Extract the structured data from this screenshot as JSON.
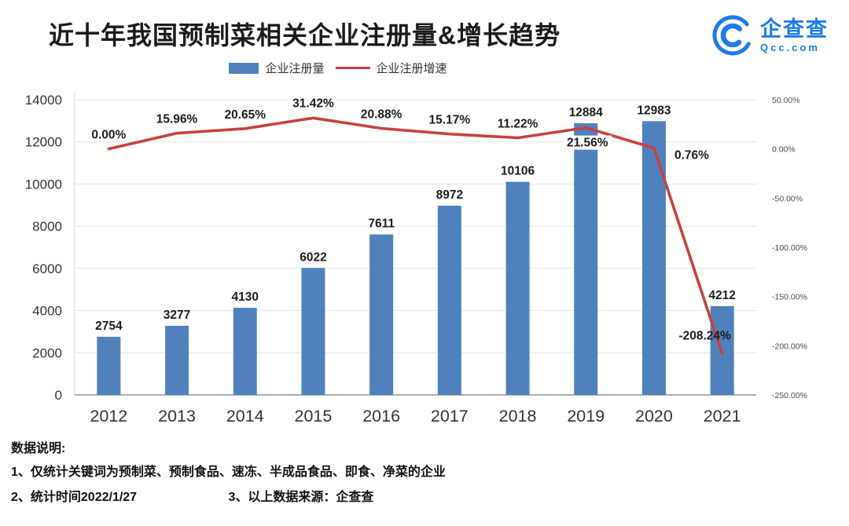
{
  "header": {
    "title": "近十年我国预制菜相关企业注册量&增长趋势",
    "logo": {
      "name": "企查查",
      "domain": "Qcc.com"
    }
  },
  "legend": {
    "bar_label": "企业注册量",
    "line_label": "企业注册增速"
  },
  "chart_data": {
    "type": "bar+line",
    "title": "近十年我国预制菜相关企业注册量&增长趋势",
    "categories": [
      "2012",
      "2013",
      "2014",
      "2015",
      "2016",
      "2017",
      "2018",
      "2019",
      "2020",
      "2021"
    ],
    "series": [
      {
        "name": "企业注册量",
        "type": "bar",
        "axis": "left",
        "color": "#4f81bd",
        "values": [
          2754,
          3277,
          4130,
          6022,
          7611,
          8972,
          10106,
          12884,
          12983,
          4212
        ],
        "value_labels": [
          "2754",
          "3277",
          "4130",
          "6022",
          "7611",
          "8972",
          "10106",
          "12884",
          "12983",
          "4212"
        ]
      },
      {
        "name": "企业注册增速",
        "type": "line",
        "axis": "right",
        "color": "#c64240",
        "values": [
          0.0,
          15.96,
          20.65,
          31.42,
          20.88,
          15.17,
          11.22,
          21.56,
          0.76,
          -208.24
        ],
        "point_labels": [
          "0.00%",
          "15.96%",
          "20.65%",
          "31.42%",
          "20.88%",
          "15.17%",
          "11.22%",
          "21.56%",
          "0.76%",
          "-208.24%"
        ]
      }
    ],
    "left_axis": {
      "min": 0,
      "max": 14000,
      "tick_values": [
        0,
        2000,
        4000,
        6000,
        8000,
        10000,
        12000,
        14000
      ],
      "tick_labels": [
        "0",
        "2000",
        "4000",
        "6000",
        "8000",
        "10000",
        "12000",
        "14000"
      ]
    },
    "right_axis": {
      "min": -250,
      "max": 50,
      "tick_values": [
        50,
        0,
        -50,
        -100,
        -150,
        -200,
        -250
      ],
      "tick_labels": [
        "50.00%",
        "0.00%",
        "-50.00%",
        "-100.00%",
        "-150.00%",
        "-200.00%",
        "-250.00%"
      ]
    },
    "grid": true,
    "legend_position": "top"
  },
  "footnotes": {
    "heading": "数据说明:",
    "note1": "1、仅统计关键词为预制菜、预制食品、速冻、半成品食品、即食、净菜的企业",
    "note2": "2、统计时间2022/1/27",
    "note3": "3、以上数据来源：企查查"
  }
}
